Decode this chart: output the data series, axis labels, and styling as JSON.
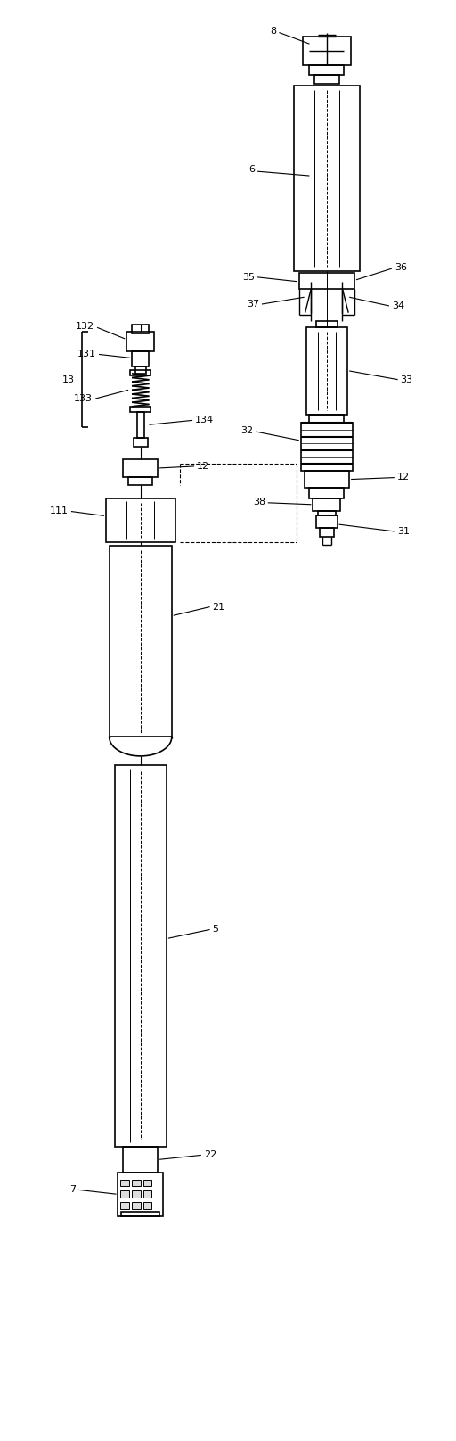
{
  "bg_color": "#ffffff",
  "line_color": "#000000",
  "fig_width": 5.12,
  "fig_height": 16.16,
  "dpi": 100
}
